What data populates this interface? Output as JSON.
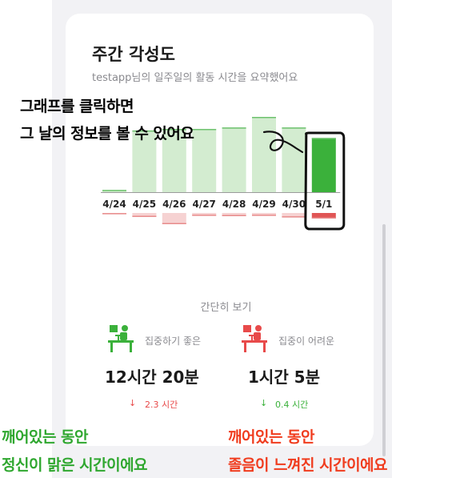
{
  "card": {
    "title": "주간 각성도",
    "subtitle": "testapp님의 일주일의 활동 시간을 요약했어요"
  },
  "overlay": {
    "line1": "그래프를 클릭하면",
    "line2": "그 날의 정보를 볼 수 있어요"
  },
  "chart_data": {
    "type": "bar",
    "categories": [
      "4/24",
      "4/25",
      "4/26",
      "4/27",
      "4/28",
      "4/29",
      "4/30",
      "5/1"
    ],
    "selected": "5/1",
    "series": [
      {
        "values": [
          0.03,
          0.82,
          0.84,
          0.84,
          0.86,
          1.0,
          0.86,
          0.72
        ]
      },
      {
        "values": [
          0.08,
          0.25,
          0.7,
          0.18,
          0.2,
          0.18,
          0.28,
          0.35
        ]
      }
    ],
    "colors": {
      "up": "#d3ecd0",
      "up_edge": "#6ec26e",
      "up_selected": "#3bb13b",
      "down": "#f6d2d2",
      "down_edge": "#e88c8c",
      "down_selected": "#e05555",
      "baseline": "#9a9a9a"
    }
  },
  "summary": {
    "title": "간단히 보기",
    "good": {
      "label": "집중하기 좋은",
      "value": "12시간 20분",
      "change": "2.3 시간",
      "arrow": "↓",
      "icon": "desk-person-icon",
      "color": "#3bb13b"
    },
    "bad": {
      "label": "집중이 어려운",
      "value": "1시간 5분",
      "change": "0.4 시간",
      "arrow": "↓",
      "icon": "desk-person-icon",
      "color": "#e84a4a"
    }
  },
  "captions": {
    "left_line1": "깨어있는 동안",
    "left_line2": "정신이 맑은 시간이에요",
    "right_line1": "깨어있는 동안",
    "right_line2": "졸음이 느껴진 시간이에요"
  }
}
